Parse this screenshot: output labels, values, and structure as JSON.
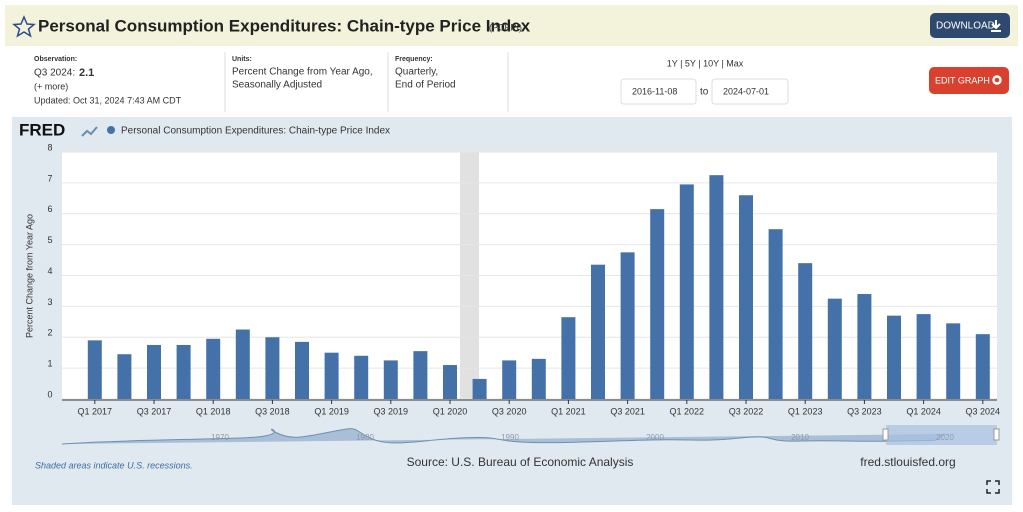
{
  "header": {
    "title": "Personal Consumption Expenditures: Chain-type Price Index",
    "code": "(PCEPI)",
    "download": "DOWNLOAD"
  },
  "info": {
    "observation_heading": "Observation:",
    "observation_label": "Q3 2024:",
    "observation_value": 2.1,
    "more": "(+ more)",
    "updated": "Updated: Oct 31, 2024 7:43 AM CDT",
    "units_heading": "Units:",
    "units": [
      "Percent Change from Year Ago,",
      "Seasonally Adjusted"
    ],
    "frequency_heading": "Frequency:",
    "frequency": [
      "Quarterly,",
      "End of Period"
    ],
    "ranges": "1Y | 5Y | 10Y | Max",
    "start_date": "2016-11-08",
    "to": "to",
    "end_date": "2024-07-01",
    "edit": "EDIT GRAPH"
  },
  "logo": "FRED",
  "chart_data": {
    "type": "bar",
    "y_label": "Percent Change from Year Ago",
    "categories": [
      "Q1 2017",
      null,
      "Q3 2017",
      null,
      "Q1 2018",
      null,
      "Q3 2018",
      null,
      "Q1 2019",
      null,
      "Q3 2019",
      null,
      "Q1 2020",
      null,
      "Q3 2020",
      null,
      "Q1 2021",
      null,
      "Q3 2021",
      null,
      "Q1 2022",
      null,
      "Q3 2022",
      null,
      "Q1 2023",
      null,
      "Q3 2023",
      null,
      "Q1 2024",
      null,
      "Q3 2024"
    ],
    "series": [
      {
        "name": "Personal Consumption Expenditures: Chain-type Price Index",
        "color": "#4472a8",
        "values": [
          1.9,
          1.45,
          1.75,
          1.75,
          1.95,
          2.25,
          2.0,
          1.85,
          1.5,
          1.4,
          1.25,
          1.55,
          1.1,
          0.65,
          1.25,
          1.3,
          2.65,
          4.35,
          4.75,
          6.15,
          6.95,
          7.25,
          6.6,
          5.5,
          4.4,
          3.25,
          3.4,
          2.7,
          2.75,
          2.45,
          2.1
        ]
      }
    ],
    "ylim": [
      0,
      8
    ],
    "yticks": [
      0,
      1,
      2,
      3,
      4,
      5,
      6,
      7,
      8
    ],
    "grid": true
  },
  "navigator": {
    "labels": [
      "1970",
      "1980",
      "1990",
      "2000",
      "2010",
      "2020"
    ]
  },
  "footer": {
    "recession_note": "Shaded areas indicate U.S. recessions.",
    "source": "Source: U.S. Bureau of Economic Analysis",
    "site": "fred.stlouisfed.org"
  }
}
